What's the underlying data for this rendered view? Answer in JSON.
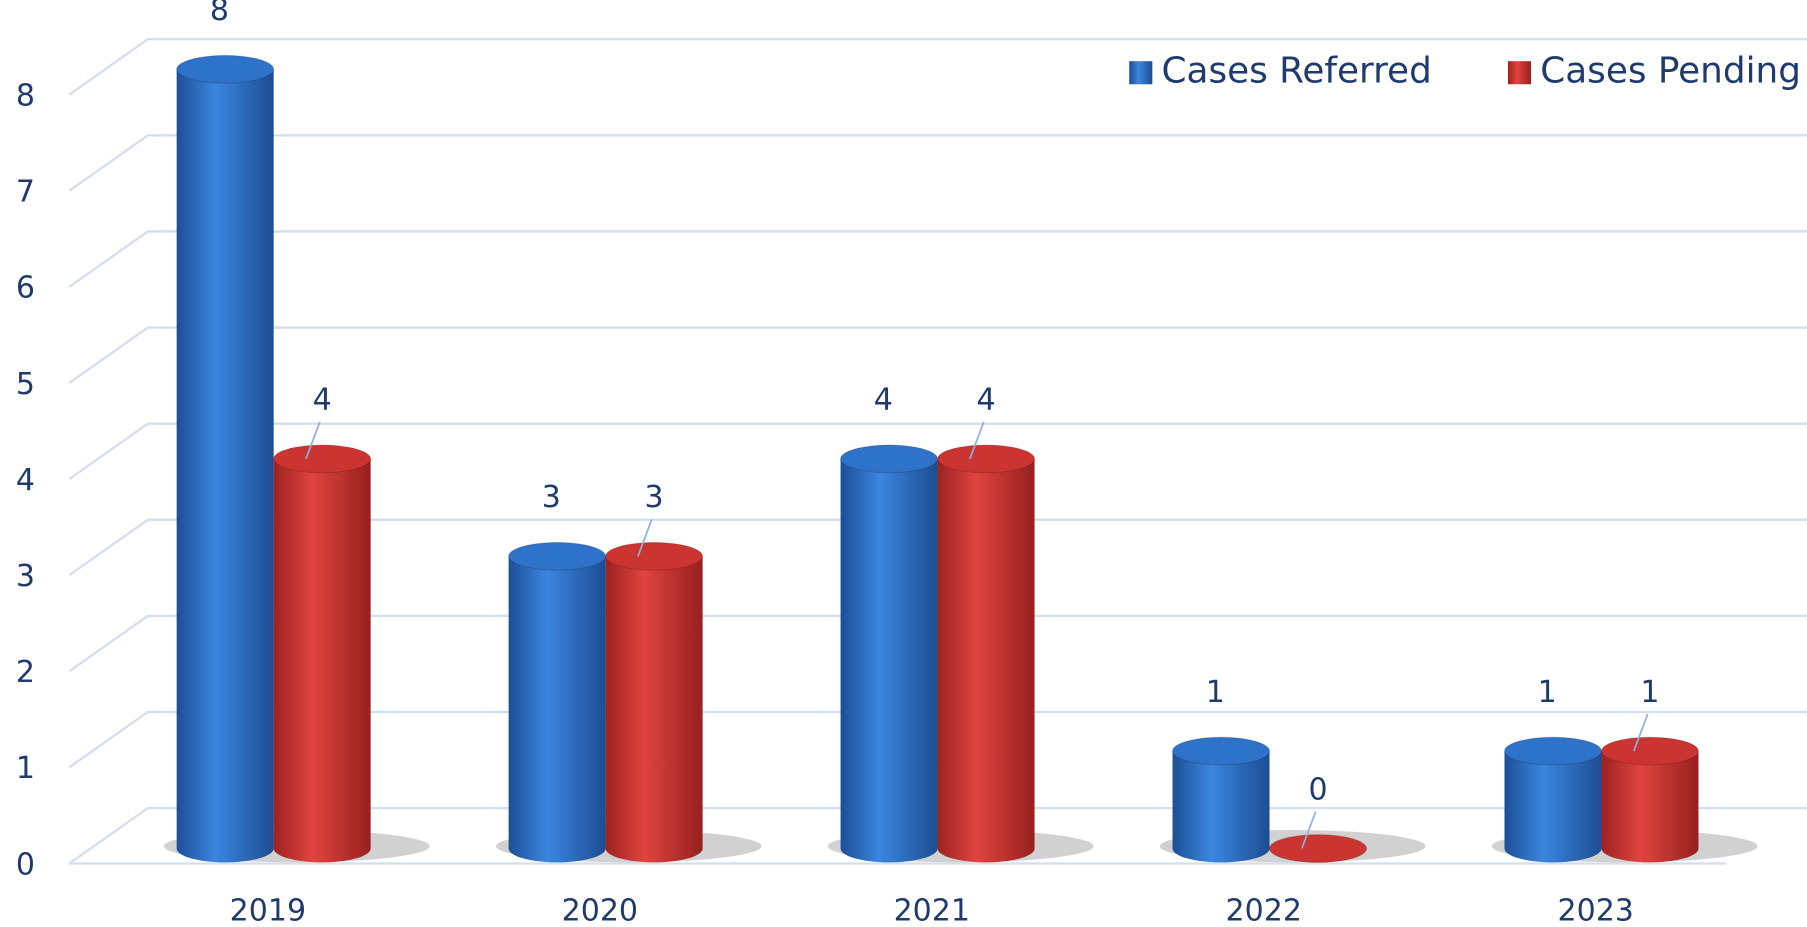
{
  "chart_data": {
    "type": "bar3d",
    "categories": [
      "2019",
      "2020",
      "2021",
      "2022",
      "2023"
    ],
    "series": [
      {
        "name": "Cases Referred",
        "color": "#2f72c9",
        "values": [
          8,
          3,
          4,
          1,
          1
        ]
      },
      {
        "name": "Cases Pending",
        "color": "#cc3431",
        "values": [
          4,
          3,
          4,
          0,
          1
        ]
      }
    ],
    "ylim": [
      0,
      8
    ],
    "yticks": [
      0,
      1,
      2,
      3,
      4,
      5,
      6,
      7,
      8
    ],
    "grid": true,
    "legend": "top-right"
  }
}
